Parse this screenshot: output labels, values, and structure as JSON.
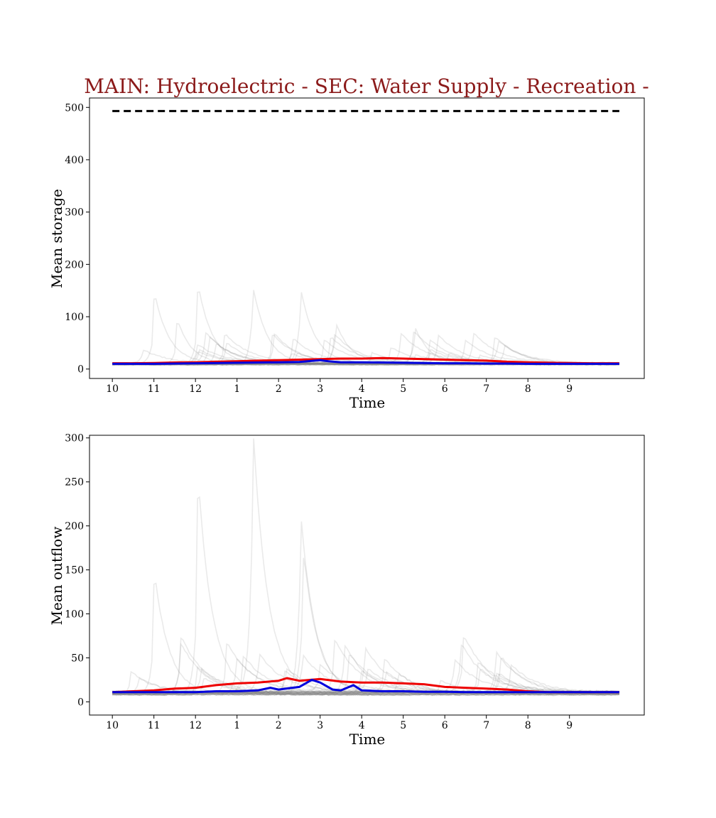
{
  "title": "MAIN: Hydroelectric - SEC: Water Supply - Recreation -",
  "colors": {
    "title": "#8b1a1a",
    "ensemble": "#808080",
    "red_series": "#ee0000",
    "blue_series": "#0000dd",
    "capacity": "#000000"
  },
  "x_tick_labels": [
    "10",
    "11",
    "12",
    "1",
    "2",
    "3",
    "4",
    "5",
    "6",
    "7",
    "8",
    "9"
  ],
  "chart_data": [
    {
      "type": "line",
      "ylabel": "Mean storage",
      "xlabel": "Time",
      "xlim": [
        -0.55,
        12.8
      ],
      "ylim": [
        -18,
        518
      ],
      "yticks": [
        0,
        100,
        200,
        300,
        400,
        500
      ],
      "legend": "none",
      "grid": false,
      "capacity_line": {
        "style": "dashed",
        "value": 493,
        "x": [
          0,
          12.2
        ]
      },
      "ensemble": {
        "count": 40,
        "style": "faint gray",
        "peaks": [
          {
            "x": 1.05,
            "y": 123
          },
          {
            "x": 1.6,
            "y": 78
          },
          {
            "x": 2.1,
            "y": 137
          },
          {
            "x": 3.4,
            "y": 143
          },
          {
            "x": 4.55,
            "y": 135
          },
          {
            "x": 5.4,
            "y": 73
          },
          {
            "x": 7.3,
            "y": 68
          }
        ]
      },
      "series": [
        {
          "color": "red",
          "x": [
            0,
            0.5,
            1,
            1.5,
            2,
            2.5,
            3,
            3.5,
            4,
            4.5,
            5,
            5.5,
            6,
            6.5,
            7,
            7.5,
            8,
            8.5,
            9,
            9.5,
            10,
            10.5,
            11,
            11.5,
            12,
            12.2
          ],
          "y": [
            11,
            11,
            11.5,
            12.5,
            13,
            14,
            15,
            16,
            17,
            18,
            19,
            20,
            20,
            21,
            20,
            19,
            18,
            17,
            16,
            14,
            13,
            12,
            11.5,
            11,
            11,
            11
          ]
        },
        {
          "color": "blue",
          "x": [
            0,
            0.5,
            1,
            1.5,
            2,
            2.5,
            3,
            3.5,
            4,
            4.5,
            5,
            5.2,
            5.5,
            6,
            6.5,
            7,
            7.5,
            8,
            8.5,
            9,
            9.5,
            10,
            10.5,
            11,
            11.5,
            12,
            12.2
          ],
          "y": [
            10,
            10,
            10,
            10.5,
            11,
            11.5,
            12,
            12.5,
            13,
            13.5,
            17,
            15,
            13,
            13,
            12.5,
            12,
            11.5,
            11,
            11,
            10.5,
            10.5,
            10,
            10,
            10,
            10,
            10,
            10
          ]
        }
      ]
    },
    {
      "type": "line",
      "ylabel": "Mean outflow",
      "xlabel": "Time",
      "xlim": [
        -0.55,
        12.8
      ],
      "ylim": [
        -15,
        303
      ],
      "yticks": [
        0,
        50,
        100,
        150,
        200,
        250,
        300
      ],
      "legend": "none",
      "grid": false,
      "ensemble": {
        "count": 40,
        "style": "faint gray",
        "peaks": [
          {
            "x": 1.05,
            "y": 125
          },
          {
            "x": 2.1,
            "y": 222
          },
          {
            "x": 3.4,
            "y": 288
          },
          {
            "x": 4.55,
            "y": 196
          },
          {
            "x": 4.62,
            "y": 153
          }
        ]
      },
      "series": [
        {
          "color": "red",
          "x": [
            0,
            0.5,
            1,
            1.5,
            2,
            2.5,
            3,
            3.5,
            4,
            4.2,
            4.5,
            5,
            5.5,
            6,
            6.5,
            7,
            7.5,
            8,
            8.5,
            9,
            9.5,
            10,
            10.5,
            11,
            11.5,
            12,
            12.2
          ],
          "y": [
            11,
            12,
            13,
            15,
            16,
            19,
            21,
            22,
            24,
            27,
            24,
            26,
            23,
            22,
            22,
            21,
            20,
            17,
            16,
            15,
            14,
            12,
            11,
            11,
            11,
            11,
            11
          ]
        },
        {
          "color": "blue",
          "x": [
            0,
            0.5,
            1,
            1.5,
            2,
            2.5,
            3,
            3.5,
            3.8,
            4,
            4.5,
            4.8,
            5,
            5.3,
            5.5,
            5.8,
            6,
            6.5,
            7,
            7.5,
            8,
            8.5,
            9,
            9.5,
            10,
            10.5,
            11,
            11.5,
            12,
            12.2
          ],
          "y": [
            11,
            11,
            11,
            11,
            11,
            12,
            12,
            13,
            16,
            14,
            17,
            25,
            22,
            14,
            13,
            19,
            13,
            12,
            12,
            11.5,
            11.5,
            11,
            11,
            11,
            11,
            11,
            11,
            11,
            11,
            11
          ]
        }
      ]
    }
  ]
}
